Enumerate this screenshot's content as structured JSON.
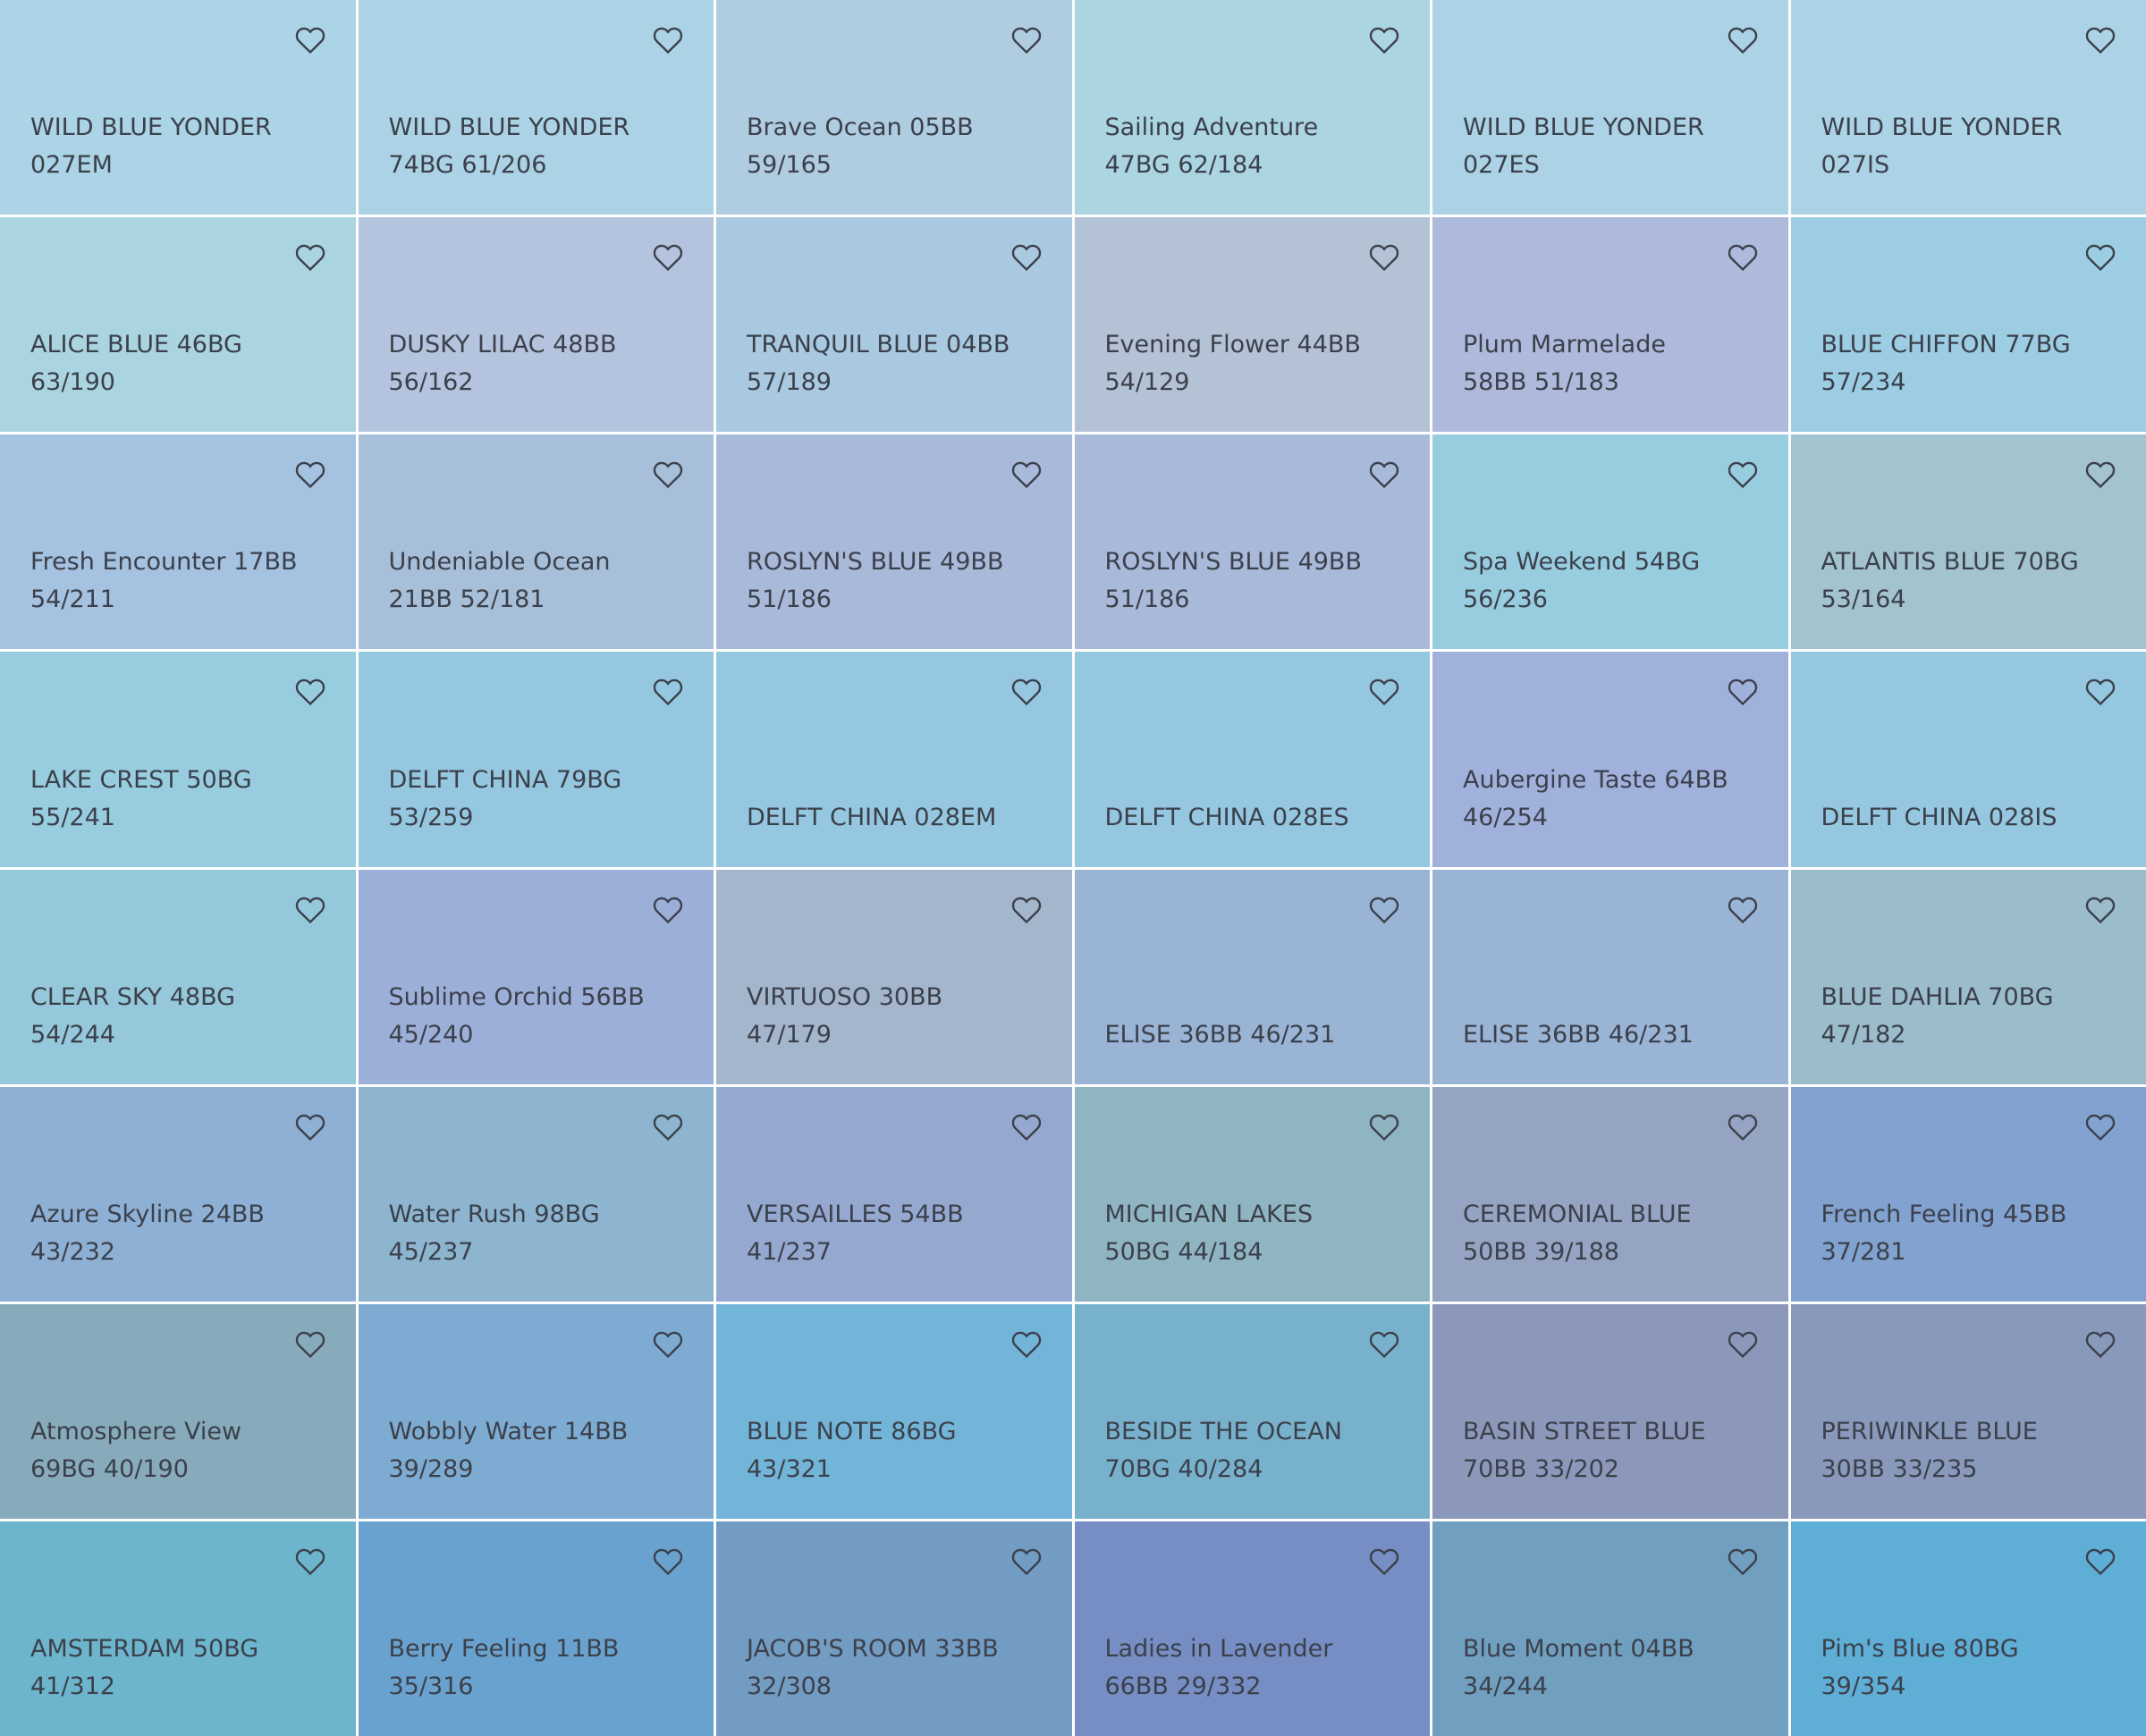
{
  "swatches": [
    {
      "lines": [
        "WILD BLUE YONDER",
        "027EM"
      ],
      "color": "#abd4e6"
    },
    {
      "lines": [
        "WILD BLUE YONDER",
        "74BG 61/206"
      ],
      "color": "#abd3e5"
    },
    {
      "lines": [
        "Brave Ocean 05BB",
        "59/165"
      ],
      "color": "#b0cce0"
    },
    {
      "lines": [
        "Sailing Adventure",
        "47BG 62/184"
      ],
      "color": "#acd5e2"
    },
    {
      "lines": [
        "WILD BLUE YONDER",
        "027ES"
      ],
      "color": "#abd3e5"
    },
    {
      "lines": [
        "WILD BLUE YONDER",
        "027IS"
      ],
      "color": "#abd3e5"
    },
    {
      "lines": [
        "ALICE BLUE 46BG",
        "63/190"
      ],
      "color": "#aad5e0"
    },
    {
      "lines": [
        "DUSKY LILAC 48BB",
        "56/162"
      ],
      "color": "#b5c4de"
    },
    {
      "lines": [
        "TRANQUIL BLUE 04BB",
        "57/189"
      ],
      "color": "#a9c9e0"
    },
    {
      "lines": [
        "Evening Flower 44BB",
        "54/129"
      ],
      "color": "#b4c2d6"
    },
    {
      "lines": [
        "Plum Marmelade",
        "58BB 51/183"
      ],
      "color": "#adbadb"
    },
    {
      "lines": [
        "BLUE CHIFFON 77BG",
        "57/234"
      ],
      "color": "#9ccde3"
    },
    {
      "lines": [
        "Fresh Encounter 17BB",
        "54/211"
      ],
      "color": "#a5c2e0"
    },
    {
      "lines": [
        "Undeniable Ocean",
        "21BB 52/181"
      ],
      "color": "#a7bfd9"
    },
    {
      "lines": [
        "ROSLYN'S BLUE 49BB",
        "51/186"
      ],
      "color": "#a8b9d9"
    },
    {
      "lines": [
        "ROSLYN'S BLUE 49BB",
        "51/186"
      ],
      "color": "#a8b9d9"
    },
    {
      "lines": [
        "Spa Weekend 54BG",
        "56/236"
      ],
      "color": "#98cde0"
    },
    {
      "lines": [
        "ATLANTIS BLUE 70BG",
        "53/164"
      ],
      "color": "#a3c4cf"
    },
    {
      "lines": [
        "LAKE CREST 50BG",
        "55/241"
      ],
      "color": "#98cde0"
    },
    {
      "lines": [
        "DELFT CHINA 79BG",
        "53/259"
      ],
      "color": "#95c8e0"
    },
    {
      "lines": [
        "DELFT CHINA 028EM"
      ],
      "color": "#95c8e0"
    },
    {
      "lines": [
        "DELFT CHINA 028ES"
      ],
      "color": "#95c8e0"
    },
    {
      "lines": [
        "Aubergine Taste 64BB",
        "46/254"
      ],
      "color": "#a0b1dc"
    },
    {
      "lines": [
        "DELFT CHINA 028IS"
      ],
      "color": "#95c8e0"
    },
    {
      "lines": [
        "CLEAR SKY 48BG",
        "54/244"
      ],
      "color": "#95c8db"
    },
    {
      "lines": [
        "Sublime Orchid 56BB",
        "45/240"
      ],
      "color": "#9cafd8"
    },
    {
      "lines": [
        "VIRTUOSO 30BB",
        "47/179"
      ],
      "color": "#a3b6cc"
    },
    {
      "lines": [
        "ELISE 36BB 46/231"
      ],
      "color": "#9ab4d6"
    },
    {
      "lines": [
        "ELISE 36BB 46/231"
      ],
      "color": "#9ab4d6"
    },
    {
      "lines": [
        "BLUE DAHLIA 70BG",
        "47/182"
      ],
      "color": "#9abccb"
    },
    {
      "lines": [
        "Azure Skyline 24BB",
        "43/232"
      ],
      "color": "#8eb0d5"
    },
    {
      "lines": [
        "Water Rush 98BG",
        "45/237"
      ],
      "color": "#8db5d0"
    },
    {
      "lines": [
        "VERSAILLES 54BB",
        "41/237"
      ],
      "color": "#95a8d0"
    },
    {
      "lines": [
        "MICHIGAN LAKES",
        "50BG 44/184"
      ],
      "color": "#90b5c2"
    },
    {
      "lines": [
        "CEREMONIAL BLUE",
        "50BB 39/188"
      ],
      "color": "#94a4c2"
    },
    {
      "lines": [
        "French Feeling 45BB",
        "37/281"
      ],
      "color": "#82a2d0"
    },
    {
      "lines": [
        "Atmosphere View",
        "69BG 40/190"
      ],
      "color": "#88abbb"
    },
    {
      "lines": [
        "Wobbly Water 14BB",
        "39/289"
      ],
      "color": "#7eabd2"
    },
    {
      "lines": [
        "BLUE NOTE 86BG",
        "43/321"
      ],
      "color": "#73b5d8"
    },
    {
      "lines": [
        "BESIDE THE OCEAN",
        "70BG 40/284"
      ],
      "color": "#78b1cc"
    },
    {
      "lines": [
        "BASIN STREET BLUE",
        "70BB 33/202"
      ],
      "color": "#8b98ba"
    },
    {
      "lines": [
        "PERIWINKLE BLUE",
        "30BB 33/235"
      ],
      "color": "#8899bb"
    },
    {
      "lines": [
        "AMSTERDAM 50BG",
        "41/312"
      ],
      "color": "#6cb5cc"
    },
    {
      "lines": [
        "Berry Feeling 11BB",
        "35/316"
      ],
      "color": "#6aa2cf"
    },
    {
      "lines": [
        "JACOB'S ROOM 33BB",
        "32/308"
      ],
      "color": "#739cc3"
    },
    {
      "lines": [
        "Ladies in Lavender",
        "66BB 29/332"
      ],
      "color": "#768ec3"
    },
    {
      "lines": [
        "Blue Moment 04BB",
        "34/244"
      ],
      "color": "#709fbf"
    },
    {
      "lines": [
        "Pim's Blue 80BG",
        "39/354"
      ],
      "color": "#5eaed6"
    }
  ]
}
